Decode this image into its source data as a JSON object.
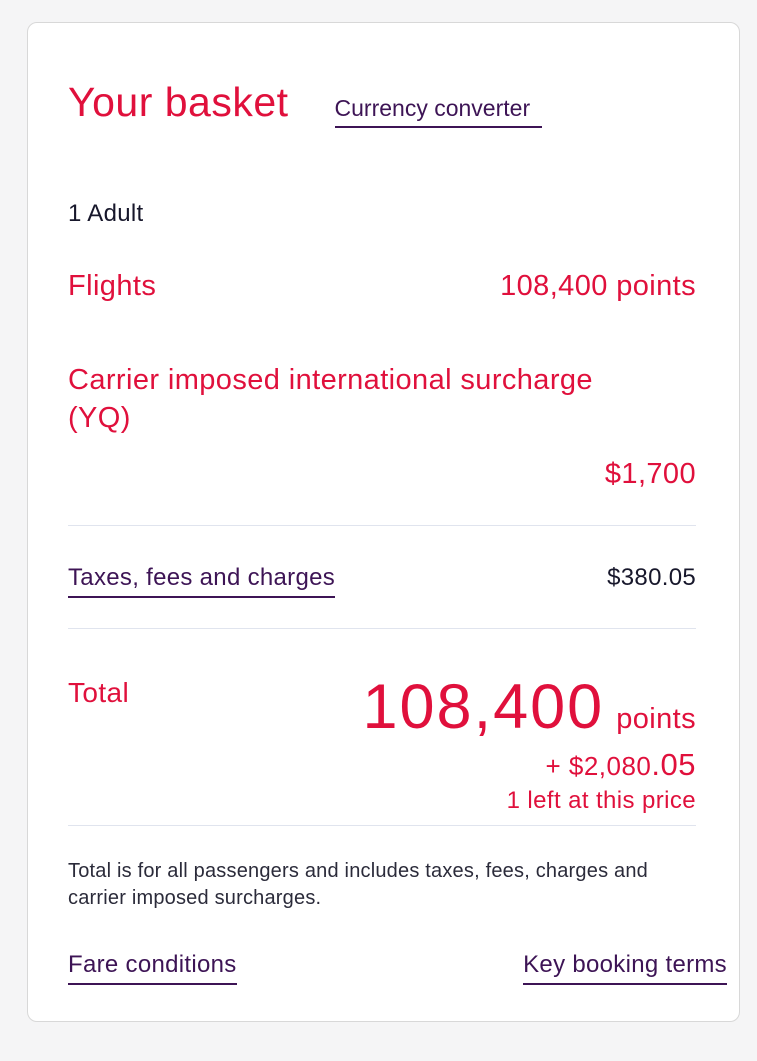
{
  "header": {
    "title": "Your basket",
    "currency_converter_label": "Currency converter"
  },
  "basket": {
    "passenger_label": "1 Adult",
    "flights": {
      "label": "Flights",
      "value": "108,400 points"
    },
    "surcharge": {
      "label": "Carrier imposed international surcharge (YQ)",
      "value": "$1,700"
    },
    "taxes": {
      "label": "Taxes, fees and charges",
      "value": "$380.05"
    },
    "total": {
      "label": "Total",
      "points_value": "108,400",
      "points_unit": "points",
      "cash_main": "+ $2,080",
      "cash_cents": ".05",
      "availability": "1 left at this price"
    }
  },
  "footer": {
    "disclaimer": "Total is for all passengers and includes taxes, fees, charges and carrier imposed surcharges.",
    "fare_conditions_label": "Fare conditions",
    "key_booking_terms_label": "Key booking terms"
  },
  "colors": {
    "brand_red": "#e0103c",
    "link_purple": "#3d1455",
    "text_dark": "#17172b",
    "divider": "#e0e4ee"
  }
}
